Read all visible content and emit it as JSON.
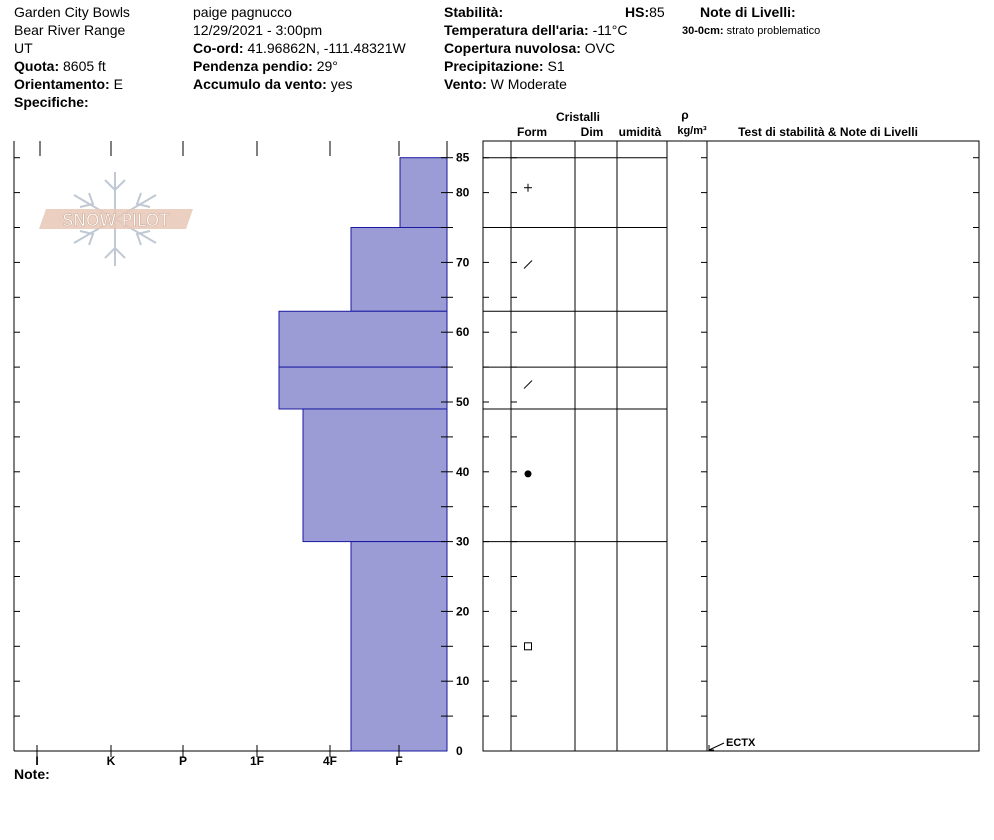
{
  "header": {
    "col1": {
      "location": "Garden City Bowls",
      "range": "Bear River Range",
      "state": "UT",
      "elevation_label": "Quota:",
      "elevation_value": "8605 ft",
      "aspect_label": "Orientamento:",
      "aspect_value": "E",
      "specifics_label": "Specifiche:"
    },
    "col2": {
      "observer": "paige pagnucco",
      "datetime": "12/29/2021 - 3:00pm",
      "coords_label": "Co-ord:",
      "coords_value": "41.96862N, -111.48321W",
      "slope_label": "Pendenza pendio:",
      "slope_value": "29°",
      "wind_loading_label": "Accumulo da vento:",
      "wind_loading_value": "yes"
    },
    "col3": {
      "stability_label": "Stabilità:",
      "air_temp_label": "Temperatura dell'aria:",
      "air_temp_value": "-11°C",
      "cloud_label": "Copertura nuvolosa:",
      "cloud_value": "OVC",
      "precip_label": "Precipitazione:",
      "precip_value": "S1",
      "wind_label": "Vento:",
      "wind_value": "W Moderate"
    },
    "hs_label": "HS:",
    "hs_value": "85",
    "layer_notes_label": "Note di Livelli:",
    "layer_note_depth": "30-0cm:",
    "layer_note_text": "strato problematico"
  },
  "logo": {
    "text": "SNOW PILOT"
  },
  "footer": {
    "notes_label": "Note:"
  },
  "table_headers": {
    "crystals": "Cristalli",
    "form": "Form",
    "size": "Dim",
    "moisture": "umidità",
    "density_symbol": "ρ",
    "density_units": "kg/m³",
    "tests_notes": "Test di stabilità & Note di Livelli"
  },
  "chart_data": {
    "type": "bar",
    "orientation": "horizontal-profile",
    "ylabel": "",
    "ylim": [
      0,
      85
    ],
    "y_ticks": [
      0,
      10,
      20,
      30,
      40,
      50,
      60,
      70,
      80,
      85
    ],
    "hardness_scale": [
      "I",
      "K",
      "P",
      "1F",
      "4F",
      "F"
    ],
    "layers": [
      {
        "top": 85,
        "bottom": 75,
        "hardness": "F",
        "grain_form": "+"
      },
      {
        "top": 75,
        "bottom": 63,
        "hardness": "1F-",
        "grain_form": "/"
      },
      {
        "top": 63,
        "bottom": 55,
        "hardness": "1F+",
        "grain_form": ""
      },
      {
        "top": 55,
        "bottom": 49,
        "hardness": "1F+",
        "grain_form": "/"
      },
      {
        "top": 49,
        "bottom": 30,
        "hardness": "1F",
        "grain_form": "●"
      },
      {
        "top": 30,
        "bottom": 0,
        "hardness": "1F-",
        "grain_form": "□"
      }
    ],
    "hardness_widths": [
      15,
      22,
      32,
      32,
      27,
      22
    ],
    "stability_tests": [
      {
        "depth": 0,
        "label": "ECTX"
      }
    ],
    "layer_color": "#9b9bd6",
    "layer_border": "#1a1aa0"
  }
}
